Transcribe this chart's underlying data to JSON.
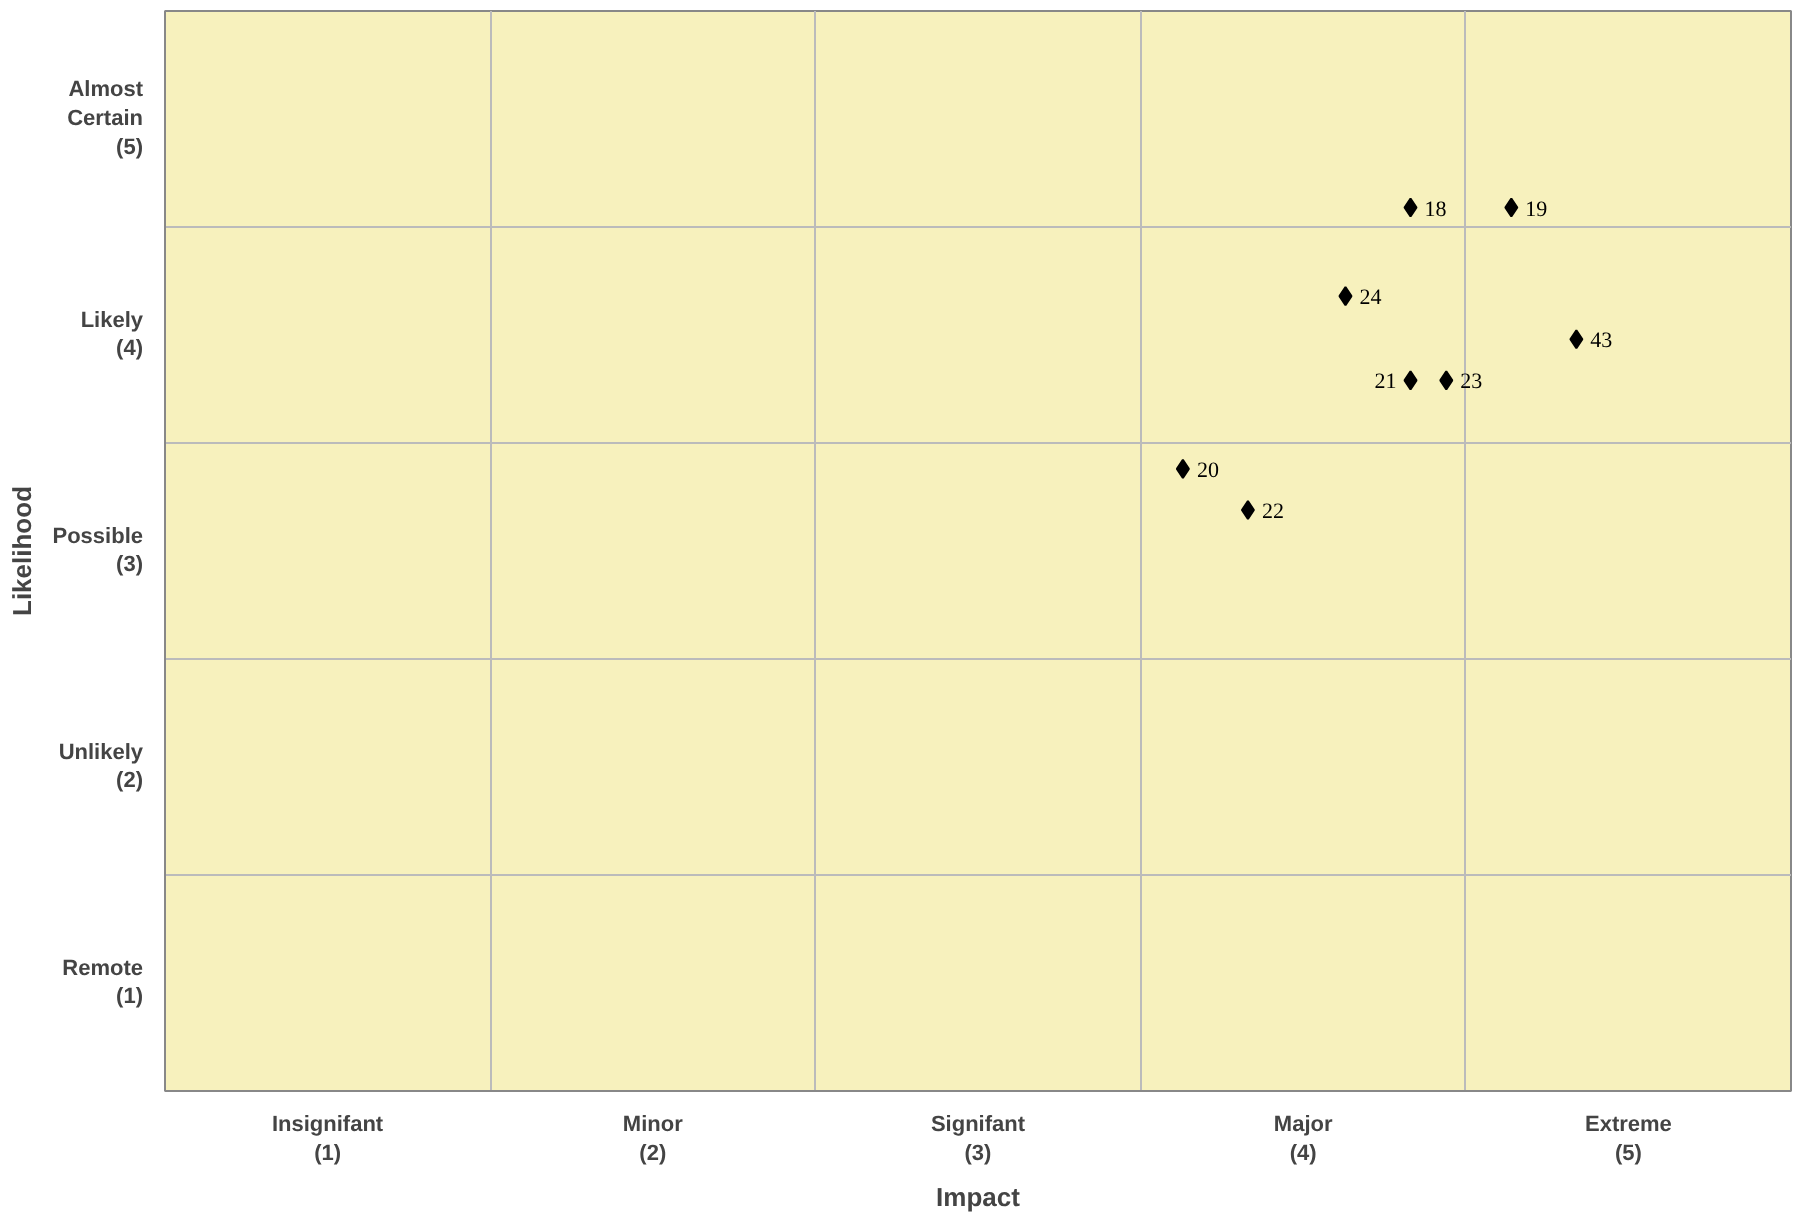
{
  "chart_data": {
    "type": "scatter",
    "xlabel": "Impact",
    "ylabel": "Likelihood",
    "x": [
      4.33,
      4.64,
      4.13,
      4.84,
      4.33,
      4.44,
      3.63,
      3.83
    ],
    "values": [
      4.59,
      4.59,
      4.18,
      3.98,
      3.79,
      3.79,
      3.38,
      3.19
    ],
    "annotations": [
      {
        "text": "18",
        "x": 4.33,
        "y": 4.59
      },
      {
        "text": "19",
        "x": 4.64,
        "y": 4.59
      },
      {
        "text": "24",
        "x": 4.13,
        "y": 4.18
      },
      {
        "text": "43",
        "x": 4.84,
        "y": 3.98
      },
      {
        "text": "21",
        "x": 4.33,
        "y": 3.79
      },
      {
        "text": "23",
        "x": 4.44,
        "y": 3.79
      },
      {
        "text": "20",
        "x": 3.63,
        "y": 3.38
      },
      {
        "text": "22",
        "x": 3.83,
        "y": 3.19
      }
    ],
    "color": "#000000",
    "marker": "diamond",
    "xlim": [
      0.5,
      5.5
    ],
    "ylim": [
      0.5,
      5.5
    ],
    "xticks": [
      {
        "value": 1,
        "label": "Insignifant\n(1)"
      },
      {
        "value": 2,
        "label": "Minor\n(2)"
      },
      {
        "value": 3,
        "label": "Signifant\n(3)"
      },
      {
        "value": 4,
        "label": "Major\n(4)"
      },
      {
        "value": 5,
        "label": "Extreme\n(5)"
      }
    ],
    "yticks": [
      {
        "value": 1,
        "label": "Remote\n(1)"
      },
      {
        "value": 2,
        "label": "Unlikely\n(2)"
      },
      {
        "value": 3,
        "label": "Possible\n(3)"
      },
      {
        "value": 4,
        "label": "Likely\n(4)"
      },
      {
        "value": 5,
        "label": "Almost\nCertain\n(5)"
      }
    ],
    "grid": true
  }
}
